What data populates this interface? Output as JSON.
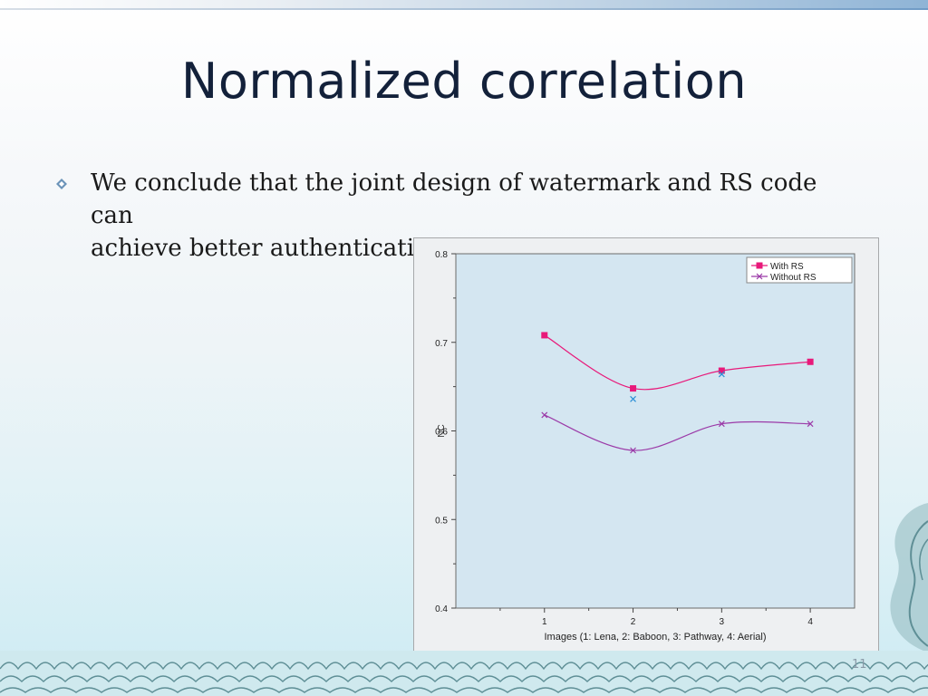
{
  "slide": {
    "title": "Normalized correlation",
    "bullet_text_line1": "We conclude that the joint design of watermark and RS code can",
    "bullet_text_line2": "achieve better authentication performance.",
    "bullet_icon": "diamond-bullet-icon",
    "page_number": "11"
  },
  "colors": {
    "with_rs": "#e8197a",
    "without_rs": "#9b3aa8",
    "outlier": "#2a8fd6",
    "plot_bg": "#d4e6f1"
  },
  "chart_data": {
    "type": "line",
    "xlabel": "Images (1: Lena, 2: Baboon, 3: Pathway, 4: Aerial)",
    "ylabel": "NC",
    "x": [
      1,
      2,
      3,
      4
    ],
    "xticks": [
      "1",
      "2",
      "3",
      "4"
    ],
    "yticks": [
      "0.4",
      "0.5",
      "0.6",
      "0.7",
      "0.8"
    ],
    "xlim": [
      0,
      4.5
    ],
    "ylim": [
      0.4,
      0.8
    ],
    "legend_position": "top-right",
    "grid": false,
    "series": [
      {
        "name": "With RS",
        "marker": "square",
        "values": [
          0.708,
          0.648,
          0.668,
          0.678
        ]
      },
      {
        "name": "Without RS",
        "marker": "x",
        "values": [
          0.618,
          0.578,
          0.608,
          0.608
        ]
      }
    ],
    "extra_points": [
      {
        "x": 2,
        "y": 0.636,
        "marker": "x"
      },
      {
        "x": 3,
        "y": 0.664,
        "marker": "x"
      }
    ]
  }
}
